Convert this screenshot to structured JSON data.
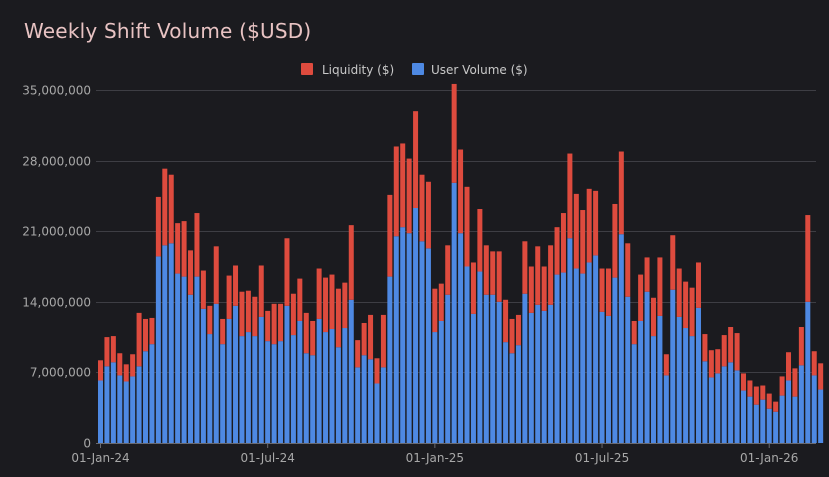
{
  "title": "Weekly Shift Volume ($USD)",
  "colors": {
    "liquidity": "#de4b3e",
    "user_volume": "#4e89e3",
    "grid": "#3e3e44",
    "background": "#1b1b1f"
  },
  "chart_data": {
    "type": "bar",
    "stacked": true,
    "title": "Weekly Shift Volume ($USD)",
    "xlabel": "",
    "ylabel": "",
    "ylim": [
      0,
      35000000
    ],
    "y_ticks": [
      0,
      7000000,
      14000000,
      21000000,
      28000000,
      35000000
    ],
    "y_tick_labels": [
      "0",
      "7,000,000",
      "14,000,000",
      "21,000,000",
      "28,000,000",
      "35,000,000"
    ],
    "x_tick_labels": [
      {
        "label": "01-Jan-24",
        "bar_index": 0
      },
      {
        "label": "01-Jul-24",
        "bar_index": 26
      },
      {
        "label": "01-Jan-25",
        "bar_index": 52
      },
      {
        "label": "01-Jul-25",
        "bar_index": 78
      },
      {
        "label": "01-Jan-26",
        "bar_index": 104
      }
    ],
    "grid": "horizontal",
    "legend_position": "top-center",
    "series": [
      {
        "name": "User Volume ($)",
        "color": "#4e89e3",
        "values": [
          6200000,
          7600000,
          8000000,
          6700000,
          6100000,
          6600000,
          7600000,
          9100000,
          9800000,
          18500000,
          19600000,
          19800000,
          16800000,
          16500000,
          14700000,
          16500000,
          13300000,
          10800000,
          13800000,
          9800000,
          12300000,
          13600000,
          10600000,
          11000000,
          10600000,
          12500000,
          10100000,
          9800000,
          10100000,
          13600000,
          10700000,
          12100000,
          8900000,
          8700000,
          12300000,
          11000000,
          11300000,
          9500000,
          11400000,
          14200000,
          7500000,
          8700000,
          8300000,
          5900000,
          7500000,
          16500000,
          20500000,
          21400000,
          20800000,
          23300000,
          20000000,
          19300000,
          11000000,
          12100000,
          14700000,
          25800000,
          20800000,
          17500000,
          12800000,
          17000000,
          14700000,
          14700000,
          14000000,
          10000000,
          8900000,
          9700000,
          14800000,
          12900000,
          13700000,
          13100000,
          13700000,
          16700000,
          16900000,
          20300000,
          17300000,
          16800000,
          17900000,
          18600000,
          13000000,
          12600000,
          16400000,
          20700000,
          14500000,
          9800000,
          12100000,
          15000000,
          10600000,
          12600000,
          6700000,
          15200000,
          12500000,
          11400000,
          10600000,
          13400000,
          8100000,
          6500000,
          6900000,
          7600000,
          8000000,
          7200000,
          5200000,
          4600000,
          3800000,
          4300000,
          3400000,
          3100000,
          4700000,
          6200000,
          4600000,
          7700000,
          14000000,
          6700000,
          5300000
        ]
      },
      {
        "name": "Liquidity ($)",
        "color": "#de4b3e",
        "values": [
          2000000,
          2900000,
          2600000,
          2200000,
          1700000,
          2200000,
          5300000,
          3200000,
          2600000,
          5900000,
          7600000,
          6800000,
          5000000,
          5500000,
          4400000,
          6300000,
          3800000,
          2800000,
          5700000,
          2500000,
          4300000,
          4000000,
          4400000,
          4100000,
          3900000,
          5100000,
          3000000,
          4000000,
          3700000,
          6700000,
          4100000,
          4200000,
          4000000,
          3400000,
          5000000,
          5400000,
          5400000,
          5800000,
          4500000,
          7400000,
          2700000,
          3200000,
          4400000,
          2500000,
          5200000,
          8100000,
          8900000,
          8300000,
          7400000,
          9600000,
          6600000,
          6600000,
          4300000,
          3700000,
          4900000,
          9800000,
          8300000,
          7900000,
          5100000,
          6200000,
          4900000,
          4300000,
          5000000,
          4200000,
          3400000,
          3000000,
          5200000,
          4600000,
          5800000,
          4400000,
          5900000,
          4700000,
          5900000,
          8400000,
          7400000,
          6300000,
          7300000,
          6400000,
          4300000,
          4700000,
          7300000,
          8200000,
          5300000,
          2300000,
          4600000,
          3400000,
          3800000,
          5800000,
          2100000,
          5400000,
          4800000,
          4600000,
          4800000,
          4500000,
          2700000,
          2700000,
          2400000,
          3100000,
          3500000,
          3700000,
          1700000,
          1600000,
          1800000,
          1400000,
          1500000,
          1000000,
          1900000,
          2800000,
          2800000,
          3800000,
          8600000,
          2400000,
          2600000
        ]
      }
    ]
  }
}
